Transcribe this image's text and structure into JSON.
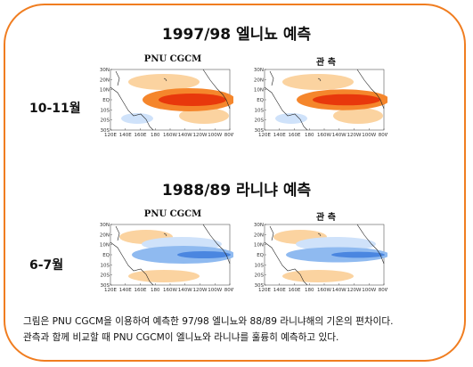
{
  "figure": {
    "el_nino_title": "1997/98 엘니뇨 예측",
    "la_nina_title": "1988/89 라니냐 예측",
    "model_label": "PNU CGCM",
    "obs_label": "관 측",
    "row1_label": "10-11월",
    "row2_label": "6-7월",
    "lat_ticks": [
      "30N",
      "20N",
      "10N",
      "EQ",
      "10S",
      "20S",
      "30S"
    ],
    "lon_ticks": [
      "120E",
      "140E",
      "160E",
      "180",
      "160W",
      "140W",
      "120W",
      "100W",
      "80W"
    ],
    "caption_line1": "그림은 PNU CGCM을 이용하여 예측한 97/98 엘니뇨와 88/89 라니냐해의 기온의 편차이다.",
    "caption_line2": "관측과 함께 비교할 때 PNU CGCM이 엘니뇨와 라니냐를 훌륭히 예측하고 있다."
  },
  "colors": {
    "frame": "#f07d20",
    "warm_strong": "#e8380c",
    "warm": "#f5862c",
    "warm_light": "#fbd3a0",
    "cool_strong": "#4a86e0",
    "cool": "#8fbaf0",
    "cool_light": "#cfe2fa"
  }
}
